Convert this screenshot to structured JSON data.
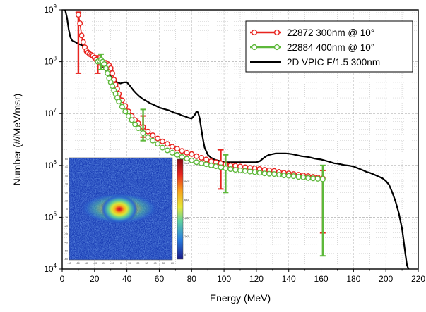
{
  "chart_data": {
    "type": "line",
    "title": "",
    "xlabel": "Energy (MeV)",
    "ylabel": "Number (#/MeV/msr)",
    "xlim": [
      0,
      220
    ],
    "ylim": [
      10000,
      1000000000
    ],
    "yscale": "log",
    "grid": true,
    "legend_position": "top-right",
    "x_ticks": [
      0,
      20,
      40,
      60,
      80,
      100,
      120,
      140,
      160,
      180,
      200,
      220
    ],
    "x_tick_labels": [
      "0",
      "20",
      "40",
      "60",
      "80",
      "100",
      "120",
      "140",
      "160",
      "180",
      "200",
      "220"
    ],
    "y_ticks": [
      10000,
      100000,
      1000000,
      10000000,
      100000000,
      1000000000
    ],
    "y_tick_labels": [
      {
        "base": "10",
        "exp": "4"
      },
      {
        "base": "10",
        "exp": "5"
      },
      {
        "base": "10",
        "exp": "6"
      },
      {
        "base": "10",
        "exp": "7"
      },
      {
        "base": "10",
        "exp": "8"
      },
      {
        "base": "10",
        "exp": "9"
      }
    ],
    "series": [
      {
        "name": "22872 300nm @ 10°",
        "color": "#e8241f",
        "marker": "open-circle",
        "x": [
          10,
          11,
          12,
          13,
          14,
          15,
          16,
          17,
          18,
          19,
          20,
          21,
          22,
          23,
          24,
          25,
          26,
          27,
          28,
          29,
          30,
          31,
          32,
          33,
          34,
          35,
          37,
          39,
          41,
          43,
          45,
          47,
          50,
          53,
          56,
          59,
          62,
          65,
          68,
          71,
          74,
          77,
          80,
          83,
          86,
          89,
          92,
          95,
          98,
          101,
          104,
          107,
          110,
          113,
          116,
          119,
          122,
          125,
          128,
          131,
          134,
          137,
          140,
          143,
          146,
          149,
          152,
          155,
          158,
          161
        ],
        "y": [
          800000000,
          550000000,
          320000000,
          240000000,
          190000000,
          160000000,
          150000000,
          140000000,
          135000000,
          130000000,
          120000000,
          110000000,
          100000000,
          95000000,
          92000000,
          90000000,
          92000000,
          95000000,
          90000000,
          85000000,
          75000000,
          60000000,
          45000000,
          36000000,
          30000000,
          24000000,
          18000000,
          14000000,
          11000000,
          9000000,
          7500000,
          6500000,
          5500000,
          4500000,
          3800000,
          3300000,
          2900000,
          2600000,
          2300000,
          2100000,
          1900000,
          1750000,
          1650000,
          1500000,
          1400000,
          1300000,
          1200000,
          1150000,
          1100000,
          1050000,
          1000000,
          980000,
          950000,
          920000,
          900000,
          880000,
          850000,
          820000,
          800000,
          780000,
          750000,
          720000,
          700000,
          680000,
          660000,
          640000,
          620000,
          600000,
          580000,
          560000
        ],
        "error_bars": [
          {
            "x": 10,
            "y": 800000000,
            "low": 60000000,
            "high": 900000000
          },
          {
            "x": 22,
            "y": 100000000,
            "low": 60000000,
            "high": 130000000
          },
          {
            "x": 50,
            "y": 5500000,
            "low": 3500000,
            "high": 9000000
          },
          {
            "x": 98,
            "y": 1100000,
            "low": 350000,
            "high": 2000000
          },
          {
            "x": 161,
            "y": 560000,
            "low": 50000,
            "high": 800000
          }
        ]
      },
      {
        "name": "22884 400nm @ 10°",
        "color": "#5db83a",
        "marker": "open-circle",
        "x": [
          22,
          23,
          24,
          25,
          26,
          27,
          28,
          29,
          30,
          31,
          32,
          33,
          34,
          35,
          37,
          39,
          41,
          43,
          45,
          47,
          50,
          53,
          56,
          59,
          62,
          65,
          68,
          71,
          74,
          77,
          80,
          83,
          86,
          89,
          92,
          95,
          98,
          101,
          104,
          107,
          110,
          113,
          116,
          119,
          122,
          125,
          128,
          131,
          134,
          137,
          140,
          143,
          146,
          149,
          152,
          155,
          158,
          161
        ],
        "y": [
          100000000,
          105000000,
          110000000,
          100000000,
          90000000,
          75000000,
          60000000,
          48000000,
          40000000,
          34000000,
          28000000,
          24000000,
          20000000,
          17000000,
          13500000,
          11000000,
          9000000,
          7500000,
          6200000,
          5200000,
          4200000,
          3500000,
          3000000,
          2600000,
          2200000,
          1950000,
          1750000,
          1600000,
          1450000,
          1350000,
          1250000,
          1150000,
          1100000,
          1050000,
          1000000,
          960000,
          920000,
          880000,
          850000,
          820000,
          800000,
          780000,
          760000,
          740000,
          720000,
          700000,
          690000,
          680000,
          660000,
          640000,
          630000,
          620000,
          600000,
          590000,
          570000,
          560000,
          550000,
          540000
        ],
        "error_bars": [
          {
            "x": 24,
            "y": 110000000,
            "low": 70000000,
            "high": 140000000
          },
          {
            "x": 50,
            "y": 4200000,
            "low": 3000000,
            "high": 12000000
          },
          {
            "x": 101,
            "y": 880000,
            "low": 300000,
            "high": 1600000
          },
          {
            "x": 161,
            "y": 540000,
            "low": 18000,
            "high": 1000000
          }
        ]
      },
      {
        "name": "2D VPIC F/1.5 300nm",
        "color": "#000000",
        "marker": "none",
        "x": [
          1,
          2,
          3,
          4,
          5,
          6,
          8,
          10,
          12,
          14,
          16,
          18,
          20,
          22,
          24,
          26,
          28,
          30,
          32,
          34,
          36,
          38,
          40,
          42,
          44,
          46,
          48,
          50,
          52,
          54,
          56,
          58,
          60,
          62,
          64,
          66,
          68,
          70,
          72,
          74,
          76,
          78,
          80,
          82,
          83,
          84,
          85,
          86,
          87,
          88,
          90,
          92,
          94,
          96,
          98,
          100,
          102,
          104,
          106,
          108,
          110,
          112,
          114,
          116,
          118,
          120,
          122,
          124,
          126,
          128,
          130,
          132,
          134,
          136,
          138,
          140,
          142,
          144,
          146,
          148,
          150,
          152,
          154,
          156,
          158,
          160,
          162,
          164,
          166,
          168,
          170,
          172,
          174,
          176,
          178,
          180,
          182,
          184,
          186,
          188,
          190,
          192,
          194,
          196,
          198,
          200,
          202,
          204,
          206,
          208,
          210,
          211,
          212,
          213,
          214
        ],
        "y": [
          1000000000,
          950000000,
          700000000,
          420000000,
          300000000,
          260000000,
          240000000,
          220000000,
          210000000,
          180000000,
          150000000,
          130000000,
          115000000,
          100000000,
          90000000,
          75000000,
          62000000,
          52000000,
          45000000,
          40000000,
          38000000,
          40000000,
          40000000,
          34000000,
          28000000,
          24000000,
          21000000,
          19000000,
          17500000,
          16000000,
          15000000,
          14000000,
          13000000,
          12500000,
          12000000,
          11500000,
          10800000,
          10200000,
          9800000,
          9200000,
          8800000,
          8300000,
          8000000,
          9500000,
          11000000,
          10500000,
          8000000,
          5000000,
          3200000,
          2200000,
          1600000,
          1400000,
          1300000,
          1250000,
          1200000,
          1150000,
          1150000,
          1150000,
          1150000,
          1150000,
          1150000,
          1150000,
          1150000,
          1150000,
          1150000,
          1150000,
          1200000,
          1350000,
          1500000,
          1600000,
          1650000,
          1700000,
          1700000,
          1700000,
          1700000,
          1680000,
          1650000,
          1600000,
          1550000,
          1500000,
          1480000,
          1450000,
          1400000,
          1350000,
          1320000,
          1300000,
          1250000,
          1200000,
          1150000,
          1100000,
          1080000,
          1050000,
          1020000,
          1000000,
          980000,
          950000,
          900000,
          850000,
          800000,
          750000,
          720000,
          680000,
          640000,
          600000,
          560000,
          500000,
          420000,
          300000,
          200000,
          120000,
          60000,
          35000,
          20000,
          12000,
          10000
        ]
      }
    ],
    "inset": {
      "type": "heatmap",
      "x_tick_labels": [
        "-60",
        "-50",
        "-40",
        "-30",
        "-20",
        "-10",
        "0",
        "10",
        "20",
        "30",
        "40",
        "50",
        "60"
      ],
      "y_tick_labels": [
        "60",
        "50",
        "40",
        "30",
        "20",
        "10",
        "0",
        "-10",
        "-20",
        "-30",
        "-40",
        "-50",
        "-60"
      ],
      "colorbar_labels": [
        "1e4",
        "8e3",
        "6e3",
        "4e3",
        "2e3",
        "0"
      ]
    }
  }
}
